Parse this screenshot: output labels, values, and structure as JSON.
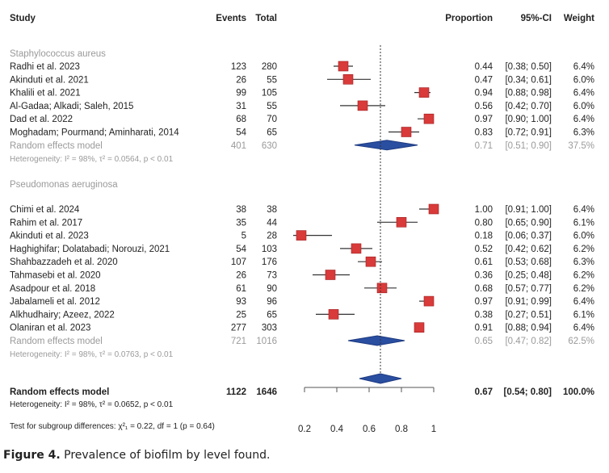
{
  "chart_data": {
    "type": "forest",
    "headers": {
      "study": "Study",
      "events": "Events",
      "total": "Total",
      "proportion": "Proportion",
      "ci": "95%-CI",
      "weight": "Weight"
    },
    "xlim": [
      0.2,
      1
    ],
    "x_ticks": [
      "0.2",
      "0.4",
      "0.6",
      "0.8",
      "1"
    ],
    "reference_line": 0.67,
    "colors": {
      "study_box": "#d93a3a",
      "diamond": "#2a4ea0",
      "subgroup_text": "#9a9a9a"
    },
    "groups": [
      {
        "name": "Staphylococcus aureus",
        "studies": [
          {
            "study": "Radhi et al. 2023",
            "events": "123",
            "total": "280",
            "prop": 0.44,
            "lo": 0.38,
            "hi": 0.5,
            "prop_text": "0.44",
            "ci_text": "[0.38; 0.50]",
            "weight": "6.4%"
          },
          {
            "study": "Akinduti et al. 2021",
            "events": "26",
            "total": "55",
            "prop": 0.47,
            "lo": 0.34,
            "hi": 0.61,
            "prop_text": "0.47",
            "ci_text": "[0.34; 0.61]",
            "weight": "6.0%"
          },
          {
            "study": "Khalili et al. 2021",
            "events": "99",
            "total": "105",
            "prop": 0.94,
            "lo": 0.88,
            "hi": 0.98,
            "prop_text": "0.94",
            "ci_text": "[0.88; 0.98]",
            "weight": "6.4%"
          },
          {
            "study": "Al-Gadaa; Alkadi; Saleh, 2015",
            "events": "31",
            "total": "55",
            "prop": 0.56,
            "lo": 0.42,
            "hi": 0.7,
            "prop_text": "0.56",
            "ci_text": "[0.42; 0.70]",
            "weight": "6.0%"
          },
          {
            "study": "Dad et al. 2022",
            "events": "68",
            "total": "70",
            "prop": 0.97,
            "lo": 0.9,
            "hi": 1.0,
            "prop_text": "0.97",
            "ci_text": "[0.90; 1.00]",
            "weight": "6.4%"
          },
          {
            "study": "Moghadam; Pourmand; Aminharati, 2014",
            "events": "54",
            "total": "65",
            "prop": 0.83,
            "lo": 0.72,
            "hi": 0.91,
            "prop_text": "0.83",
            "ci_text": "[0.72; 0.91]",
            "weight": "6.3%"
          }
        ],
        "model": {
          "label": "Random effects model",
          "events": "401",
          "total": "630",
          "prop": 0.71,
          "lo": 0.51,
          "hi": 0.9,
          "prop_text": "0.71",
          "ci_text": "[0.51; 0.90]",
          "weight": "37.5%"
        },
        "heterogeneity": "Heterogeneity: I² = 98%, τ² = 0.0564, p < 0.01"
      },
      {
        "name": "Pseudomonas aeruginosa",
        "studies": [
          {
            "study": "Chimi et al. 2024",
            "events": "38",
            "total": "38",
            "prop": 1.0,
            "lo": 0.91,
            "hi": 1.0,
            "prop_text": "1.00",
            "ci_text": "[0.91; 1.00]",
            "weight": "6.4%"
          },
          {
            "study": "Rahim et al. 2017",
            "events": "35",
            "total": "44",
            "prop": 0.8,
            "lo": 0.65,
            "hi": 0.9,
            "prop_text": "0.80",
            "ci_text": "[0.65; 0.90]",
            "weight": "6.1%"
          },
          {
            "study": "Akinduti et al. 2023",
            "events": "5",
            "total": "28",
            "prop": 0.18,
            "lo": 0.06,
            "hi": 0.37,
            "prop_text": "0.18",
            "ci_text": "[0.06; 0.37]",
            "weight": "6.0%"
          },
          {
            "study": "Haghighifar; Dolatabadi; Norouzi, 2021",
            "events": "54",
            "total": "103",
            "prop": 0.52,
            "lo": 0.42,
            "hi": 0.62,
            "prop_text": "0.52",
            "ci_text": "[0.42; 0.62]",
            "weight": "6.2%"
          },
          {
            "study": "Shahbazzadeh et al. 2020",
            "events": "107",
            "total": "176",
            "prop": 0.61,
            "lo": 0.53,
            "hi": 0.68,
            "prop_text": "0.61",
            "ci_text": "[0.53; 0.68]",
            "weight": "6.3%"
          },
          {
            "study": "Tahmasebi et al. 2020",
            "events": "26",
            "total": "73",
            "prop": 0.36,
            "lo": 0.25,
            "hi": 0.48,
            "prop_text": "0.36",
            "ci_text": "[0.25; 0.48]",
            "weight": "6.2%"
          },
          {
            "study": "Asadpour et al. 2018",
            "events": "61",
            "total": "90",
            "prop": 0.68,
            "lo": 0.57,
            "hi": 0.77,
            "prop_text": "0.68",
            "ci_text": "[0.57; 0.77]",
            "weight": "6.2%"
          },
          {
            "study": "Jabalameli et al. 2012",
            "events": "93",
            "total": "96",
            "prop": 0.97,
            "lo": 0.91,
            "hi": 0.99,
            "prop_text": "0.97",
            "ci_text": "[0.91; 0.99]",
            "weight": "6.4%"
          },
          {
            "study": "Alkhudhairy; Azeez, 2022",
            "events": "25",
            "total": "65",
            "prop": 0.38,
            "lo": 0.27,
            "hi": 0.51,
            "prop_text": "0.38",
            "ci_text": "[0.27; 0.51]",
            "weight": "6.1%"
          },
          {
            "study": "Olaniran et al. 2023",
            "events": "277",
            "total": "303",
            "prop": 0.91,
            "lo": 0.88,
            "hi": 0.94,
            "prop_text": "0.91",
            "ci_text": "[0.88; 0.94]",
            "weight": "6.4%"
          }
        ],
        "model": {
          "label": "Random effects model",
          "events": "721",
          "total": "1016",
          "prop": 0.65,
          "lo": 0.47,
          "hi": 0.82,
          "prop_text": "0.65",
          "ci_text": "[0.47; 0.82]",
          "weight": "62.5%"
        },
        "heterogeneity": "Heterogeneity: I² = 98%, τ² = 0.0763, p < 0.01"
      }
    ],
    "overall": {
      "label": "Random effects model",
      "events": "1122",
      "total": "1646",
      "prop": 0.67,
      "lo": 0.54,
      "hi": 0.8,
      "prop_text": "0.67",
      "ci_text": "[0.54; 0.80]",
      "weight": "100.0%",
      "heterogeneity": "Heterogeneity: I² = 98%, τ² = 0.0652, p < 0.01"
    },
    "subgroup_test": "Test for subgroup differences: χ²₁ = 0.22, df = 1 (p = 0.64)"
  },
  "caption": {
    "label": "Figure 4.",
    "text": " Prevalence of biofilm by level found."
  }
}
